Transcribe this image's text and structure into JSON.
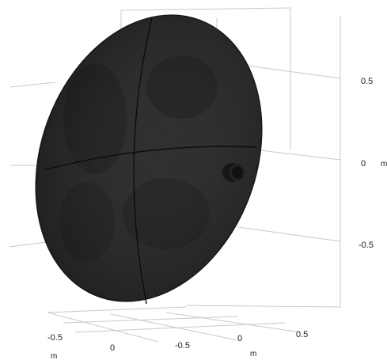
{
  "viewport": {
    "description_free": true
  },
  "axes": {
    "z_axis": {
      "tick_labels": [
        "0.5",
        "0",
        "-0.5"
      ],
      "unit": "m"
    },
    "y_axis": {
      "tick_labels": [
        "-0.5",
        "0",
        "0.5"
      ],
      "unit": "m"
    },
    "x_axis": {
      "tick_labels": [
        "-0.5",
        "0",
        "0.5"
      ],
      "unit": "m"
    },
    "grid_color": "#c9c9c9"
  },
  "model": {
    "dish_face_color": "#2b2b2b",
    "dish_edge_color": "#1a1a1a",
    "mesh_line_color": "#3d3d3d",
    "feed_color": "#161616",
    "seam_color": "#0d0d0d"
  }
}
